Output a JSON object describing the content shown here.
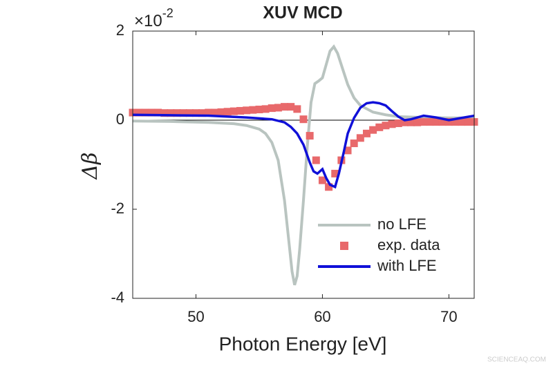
{
  "chart_data": {
    "type": "line",
    "title": "XUV MCD",
    "multiplier": {
      "base": "×10",
      "exponent": "-2"
    },
    "xlabel": "Photon Energy [eV]",
    "ylabel": "Δβ",
    "xlim": [
      45,
      72
    ],
    "ylim": [
      -4,
      2
    ],
    "xticks": [
      50,
      60,
      70
    ],
    "yticks": [
      -4,
      -2,
      0,
      2
    ],
    "zero_line": true,
    "legend": "lower right",
    "series": [
      {
        "name": "no LFE",
        "color": "#b9c4c0",
        "style": "line",
        "x": [
          45,
          48,
          51,
          53,
          54,
          55,
          55.5,
          56,
          56.5,
          57,
          57.3,
          57.6,
          57.8,
          58,
          58.2,
          58.5,
          58.8,
          59.1,
          59.4,
          59.7,
          60,
          60.3,
          60.6,
          60.9,
          61.2,
          61.6,
          62,
          62.5,
          63,
          64,
          65,
          66,
          68,
          70,
          72
        ],
        "values": [
          -0.02,
          -0.03,
          -0.05,
          -0.08,
          -0.12,
          -0.2,
          -0.3,
          -0.5,
          -0.9,
          -1.8,
          -2.6,
          -3.4,
          -3.7,
          -3.5,
          -2.9,
          -1.8,
          -0.6,
          0.4,
          0.82,
          0.88,
          0.95,
          1.25,
          1.55,
          1.65,
          1.5,
          1.15,
          0.8,
          0.5,
          0.33,
          0.18,
          0.12,
          0.08,
          0.06,
          0.05,
          0.05
        ]
      },
      {
        "name": "exp. data",
        "color": "#e8696b",
        "style": "marker",
        "x": [
          45,
          45.5,
          46,
          46.5,
          47,
          47.5,
          48,
          48.5,
          49,
          49.5,
          50,
          50.5,
          51,
          51.5,
          52,
          52.5,
          53,
          53.5,
          54,
          54.5,
          55,
          55.5,
          56,
          56.5,
          57,
          57.5,
          58,
          58.5,
          59,
          59.5,
          60,
          60.5,
          61,
          61.5,
          62,
          62.5,
          63,
          63.5,
          64,
          64.5,
          65,
          65.5,
          66,
          66.5,
          67,
          67.5,
          68,
          68.5,
          69,
          69.5,
          70,
          70.5,
          71,
          71.5,
          72
        ],
        "values": [
          0.17,
          0.17,
          0.17,
          0.17,
          0.17,
          0.16,
          0.16,
          0.16,
          0.16,
          0.16,
          0.16,
          0.16,
          0.17,
          0.17,
          0.18,
          0.19,
          0.2,
          0.21,
          0.22,
          0.23,
          0.24,
          0.25,
          0.27,
          0.28,
          0.3,
          0.3,
          0.25,
          0.02,
          -0.35,
          -0.9,
          -1.35,
          -1.5,
          -1.2,
          -0.9,
          -0.68,
          -0.52,
          -0.4,
          -0.3,
          -0.22,
          -0.16,
          -0.12,
          -0.09,
          -0.07,
          -0.05,
          -0.05,
          -0.05,
          -0.04,
          -0.04,
          -0.04,
          -0.04,
          -0.04,
          -0.04,
          -0.04,
          -0.04,
          -0.04
        ]
      },
      {
        "name": "with LFE",
        "color": "#1010d8",
        "style": "line",
        "x": [
          45,
          48,
          51,
          54,
          56,
          57,
          57.5,
          58,
          58.5,
          59,
          59.3,
          59.6,
          60,
          60.3,
          60.6,
          61,
          61.3,
          61.7,
          62,
          62.5,
          63,
          63.5,
          64,
          64.5,
          65,
          65.5,
          66,
          66.5,
          67,
          68,
          69,
          70,
          71,
          72
        ],
        "values": [
          0.12,
          0.11,
          0.1,
          0.06,
          0.02,
          -0.05,
          -0.15,
          -0.3,
          -0.55,
          -0.95,
          -1.15,
          -1.2,
          -1.1,
          -1.3,
          -1.45,
          -1.5,
          -1.2,
          -0.7,
          -0.3,
          0.05,
          0.28,
          0.38,
          0.4,
          0.38,
          0.33,
          0.2,
          0.08,
          0.0,
          0.02,
          0.1,
          0.06,
          0.0,
          0.05,
          0.1
        ]
      }
    ],
    "watermark": "SCIENCEAQ.COM"
  }
}
